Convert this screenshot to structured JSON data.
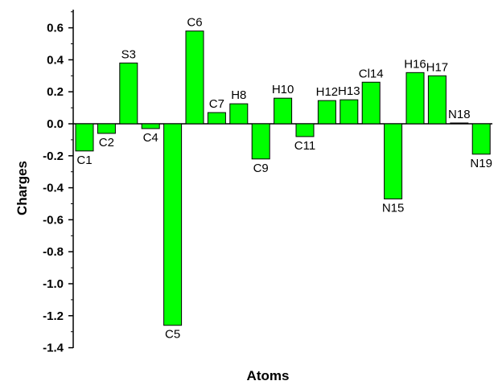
{
  "chart_data": {
    "type": "bar",
    "title": "",
    "xlabel": "Atoms",
    "ylabel": "Charges",
    "categories": [
      "C1",
      "C2",
      "S3",
      "C4",
      "C5",
      "C6",
      "C7",
      "H8",
      "C9",
      "H10",
      "C11",
      "H12",
      "H13",
      "Cl14",
      "N15",
      "H16",
      "H17",
      "N18",
      "N19"
    ],
    "values": [
      -0.17,
      -0.06,
      0.38,
      -0.03,
      -1.26,
      0.58,
      0.07,
      0.125,
      -0.22,
      0.16,
      -0.08,
      0.145,
      0.15,
      0.26,
      -0.47,
      0.32,
      0.3,
      0.005,
      -0.19
    ],
    "ylim": [
      -1.4,
      0.7
    ],
    "yticks": [
      "0.6",
      "0.4",
      "0.2",
      "0.0",
      "-0.2",
      "-0.4",
      "-0.6",
      "-0.8",
      "-1.0",
      "-1.2",
      "-1.4"
    ],
    "bar_color": "#00ff00",
    "grid": false,
    "legend": "none"
  }
}
